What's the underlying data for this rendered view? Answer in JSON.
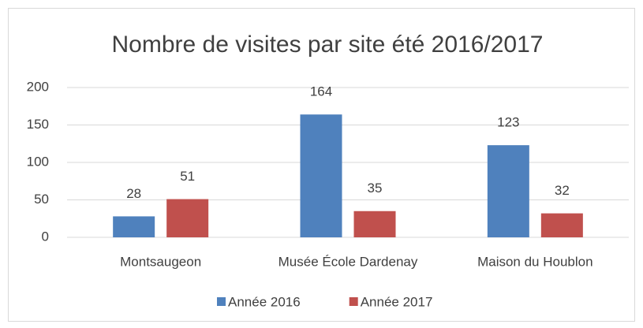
{
  "chart_data": {
    "type": "bar",
    "title": "Nombre de visites par site été 2016/2017",
    "categories": [
      "Montsaugeon",
      "Musée École Dardenay",
      "Maison du Houblon"
    ],
    "series": [
      {
        "name": "Année 2016",
        "color": "#4f81bd",
        "values": [
          28,
          164,
          123
        ]
      },
      {
        "name": "Année 2017",
        "color": "#c0504d",
        "values": [
          51,
          35,
          32
        ]
      }
    ],
    "ylim": [
      0,
      200
    ],
    "yticks": [
      0,
      50,
      100,
      150,
      200
    ],
    "grid": true,
    "legend": "bottom"
  }
}
